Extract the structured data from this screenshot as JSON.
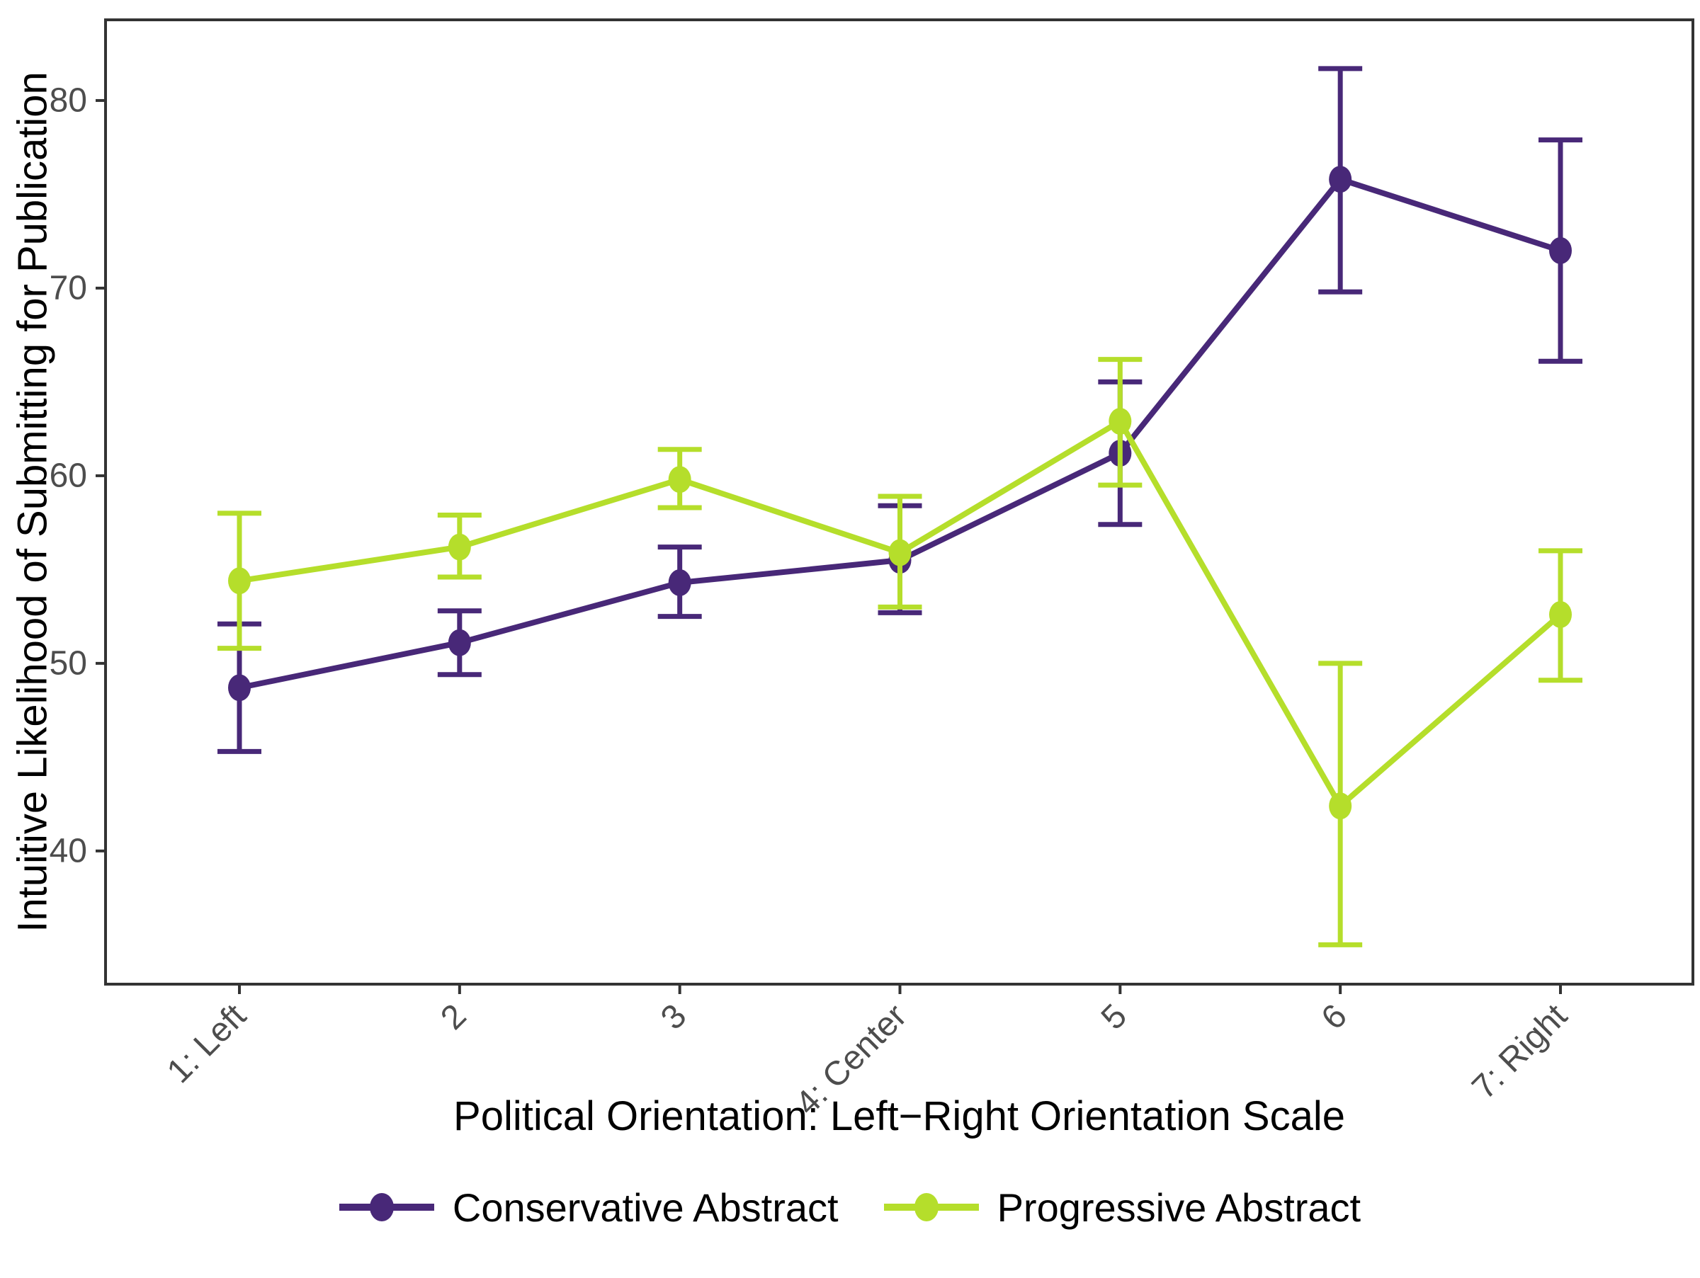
{
  "chart_data": {
    "type": "line",
    "title": "",
    "xlabel": "Political Orientation: Left−Right Orientation Scale",
    "ylabel": "Intuitive Likelihood of Submitting for Publication",
    "categories": [
      "1: Left",
      "2",
      "3",
      "4: Center",
      "5",
      "6",
      "7: Right"
    ],
    "y_ticks": [
      40,
      50,
      60,
      70,
      80
    ],
    "ylim": [
      32.9,
      84.3
    ],
    "grid": false,
    "legend_position": "bottom",
    "error_bars": true,
    "series": [
      {
        "name": "Conservative Abstract",
        "color": "#482878",
        "means": [
          48.7,
          51.1,
          54.3,
          55.5,
          61.2,
          75.8,
          72.0
        ],
        "ci_low": [
          45.3,
          49.4,
          52.5,
          52.7,
          57.4,
          69.8,
          66.1
        ],
        "ci_high": [
          52.1,
          52.8,
          56.2,
          58.4,
          65.0,
          81.7,
          77.9
        ]
      },
      {
        "name": "Progressive Abstract",
        "color": "#b5de2b",
        "means": [
          54.4,
          56.2,
          59.8,
          55.9,
          62.9,
          42.4,
          52.6
        ],
        "ci_low": [
          50.8,
          54.6,
          58.3,
          53.0,
          59.5,
          35.0,
          49.1
        ],
        "ci_high": [
          58.0,
          57.9,
          61.4,
          58.9,
          66.2,
          50.0,
          56.0
        ]
      }
    ],
    "style": {
      "tick_label_color": "#4d4d4d",
      "axis_line_color": "#333333",
      "background": "#ffffff"
    }
  }
}
